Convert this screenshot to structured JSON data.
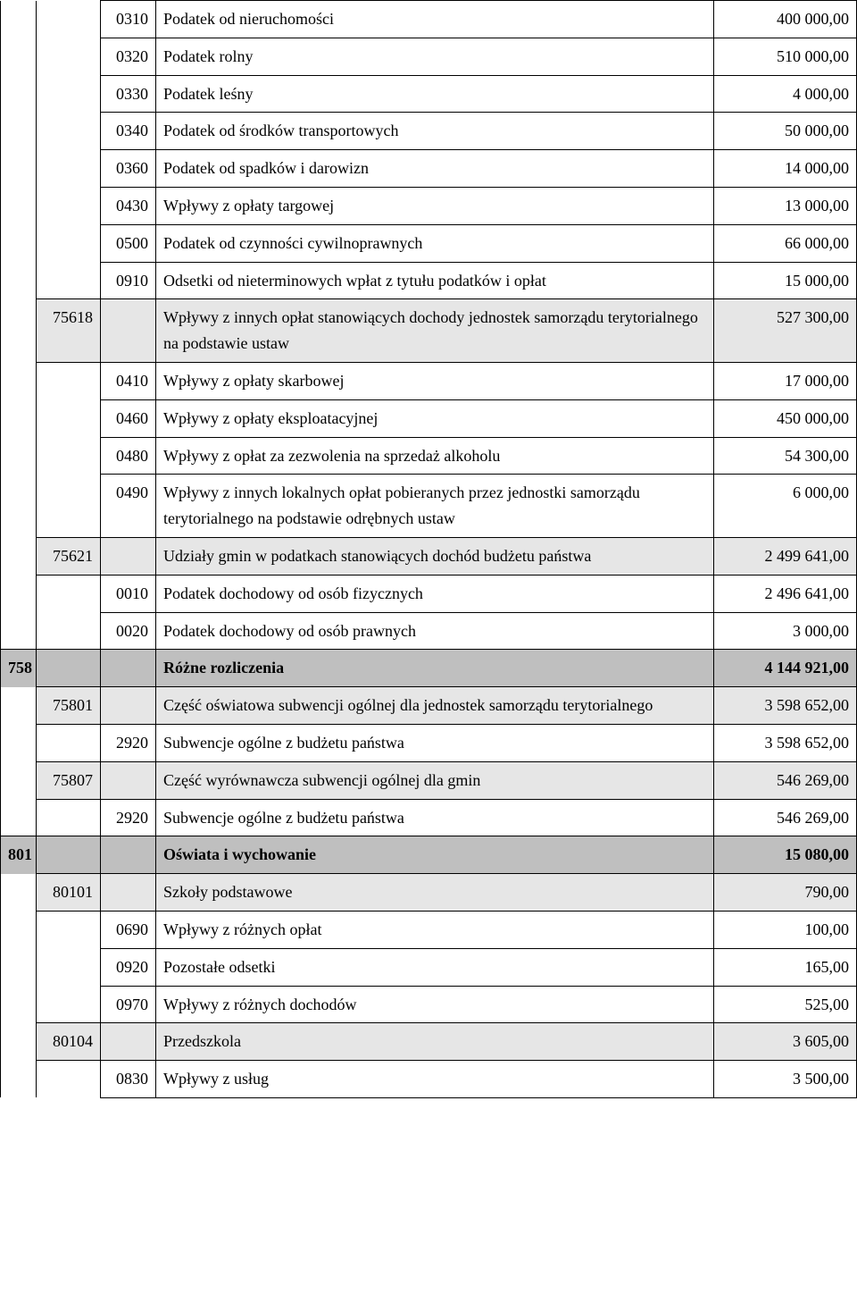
{
  "rows": [
    {
      "a_class": "noborder-tb",
      "b_class": "noborder-tb",
      "c": "0310",
      "d": "Podatek od nieruchomości",
      "e": "400 000,00"
    },
    {
      "a_class": "noborder-tb",
      "b_class": "noborder-tb",
      "c": "0320",
      "d": "Podatek rolny",
      "e": "510 000,00"
    },
    {
      "a_class": "noborder-tb",
      "b_class": "noborder-tb",
      "c": "0330",
      "d": "Podatek leśny",
      "e": "4 000,00"
    },
    {
      "a_class": "noborder-tb",
      "b_class": "noborder-tb",
      "c": "0340",
      "d": "Podatek od środków transportowych",
      "e": "50 000,00"
    },
    {
      "a_class": "noborder-tb",
      "b_class": "noborder-tb",
      "c": "0360",
      "d": "Podatek od spadków i darowizn",
      "e": "14 000,00"
    },
    {
      "a_class": "noborder-tb",
      "b_class": "noborder-tb",
      "c": "0430",
      "d": "Wpływy z opłaty targowej",
      "e": "13 000,00"
    },
    {
      "a_class": "noborder-tb",
      "b_class": "noborder-tb",
      "c": "0500",
      "d": "Podatek od czynności cywilnoprawnych",
      "e": "66 000,00"
    },
    {
      "a_class": "noborder-tb",
      "b_class": "noborder-tb",
      "c": "0910",
      "d": "Odsetki od nieterminowych wpłat z tytułu podatków i opłat",
      "e": "15 000,00"
    },
    {
      "a_class": "noborder-tb",
      "b": "75618",
      "b_class": "shade-light",
      "d": "Wpływy z innych opłat stanowiących dochody jednostek samorządu terytorialnego na podstawie ustaw",
      "d_class": "shade-light",
      "c_class": "shade-light",
      "e": "527 300,00",
      "e_class": "shade-light"
    },
    {
      "a_class": "noborder-tb",
      "b_class": "noborder-b",
      "c": "0410",
      "d": "Wpływy z opłaty skarbowej",
      "e": "17 000,00"
    },
    {
      "a_class": "noborder-tb",
      "b_class": "noborder-tb",
      "c": "0460",
      "d": "Wpływy z opłaty eksploatacyjnej",
      "e": "450 000,00"
    },
    {
      "a_class": "noborder-tb",
      "b_class": "noborder-tb",
      "c": "0480",
      "d": "Wpływy  z opłat za zezwolenia na sprzedaż alkoholu",
      "e": "54 300,00"
    },
    {
      "a_class": "noborder-tb",
      "b_class": "noborder-tb",
      "c": "0490",
      "d": "Wpływy z innych lokalnych opłat pobieranych przez jednostki samorządu terytorialnego na podstawie odrębnych ustaw",
      "e": "6 000,00"
    },
    {
      "a_class": "noborder-tb",
      "b": "75621",
      "b_class": "shade-light",
      "c_class": "shade-light",
      "d": "Udziały gmin w podatkach stanowiących dochód budżetu państwa",
      "d_class": "shade-light",
      "e": "2 499 641,00",
      "e_class": "shade-light"
    },
    {
      "a_class": "noborder-tb",
      "b_class": "noborder-b",
      "c": "0010",
      "d": "Podatek dochodowy od osób fizycznych",
      "e": "2 496 641,00"
    },
    {
      "a_class": "noborder-t",
      "b_class": "noborder-t",
      "c": "0020",
      "d": "Podatek dochodowy od osób prawnych",
      "e": "3 000,00"
    },
    {
      "a": "758",
      "a_class": "shade-dark bold noborder-b",
      "b_class": "shade-dark",
      "c_class": "shade-dark",
      "d": "Różne rozliczenia",
      "d_class": "shade-dark bold",
      "e": "4 144 921,00",
      "e_class": "shade-dark bold"
    },
    {
      "a_class": "noborder-tb",
      "b": "75801",
      "b_class": "shade-light",
      "c_class": "shade-light",
      "d": "Część oświatowa subwencji ogólnej dla jednostek samorządu terytorialnego",
      "d_class": "shade-light",
      "e": "3 598 652,00",
      "e_class": "shade-light"
    },
    {
      "a_class": "noborder-tb",
      "c": "2920",
      "d": "Subwencje ogólne z budżetu państwa",
      "e": "3 598 652,00"
    },
    {
      "a_class": "noborder-tb",
      "b": "75807",
      "b_class": "shade-light",
      "c_class": "shade-light",
      "d": "Część wyrównawcza subwencji ogólnej dla gmin",
      "d_class": "shade-light",
      "e": "546 269,00",
      "e_class": "shade-light"
    },
    {
      "a_class": "noborder-t",
      "c": "2920",
      "d": "Subwencje ogólne z budżetu państwa",
      "e": "546 269,00"
    },
    {
      "a": "801",
      "a_class": "shade-dark bold noborder-b",
      "b_class": "shade-dark",
      "c_class": "shade-dark",
      "d": "Oświata i wychowanie",
      "d_class": "shade-dark bold",
      "e": "15 080,00",
      "e_class": "shade-dark bold"
    },
    {
      "a_class": "noborder-tb",
      "b": "80101",
      "b_class": "shade-light",
      "c_class": "shade-light",
      "d": "Szkoły podstawowe",
      "d_class": "shade-light",
      "e": "790,00",
      "e_class": "shade-light"
    },
    {
      "a_class": "noborder-tb",
      "b_class": "noborder-b",
      "c": "0690",
      "d": "Wpływy z różnych opłat",
      "e": "100,00"
    },
    {
      "a_class": "noborder-tb",
      "b_class": "noborder-tb",
      "c": "0920",
      "d": "Pozostałe odsetki",
      "e": "165,00"
    },
    {
      "a_class": "noborder-tb",
      "b_class": "noborder-tb",
      "c": "0970",
      "d": "Wpływy z różnych dochodów",
      "e": "525,00"
    },
    {
      "a_class": "noborder-tb",
      "b": "80104",
      "b_class": "shade-light",
      "c_class": "shade-light",
      "d": "Przedszkola",
      "d_class": "shade-light",
      "e": "3 605,00",
      "e_class": "shade-light"
    },
    {
      "a_class": "noborder-tb",
      "b_class": "noborder-b",
      "c": "0830",
      "d": "Wpływy z usług",
      "e": "3 500,00"
    }
  ]
}
